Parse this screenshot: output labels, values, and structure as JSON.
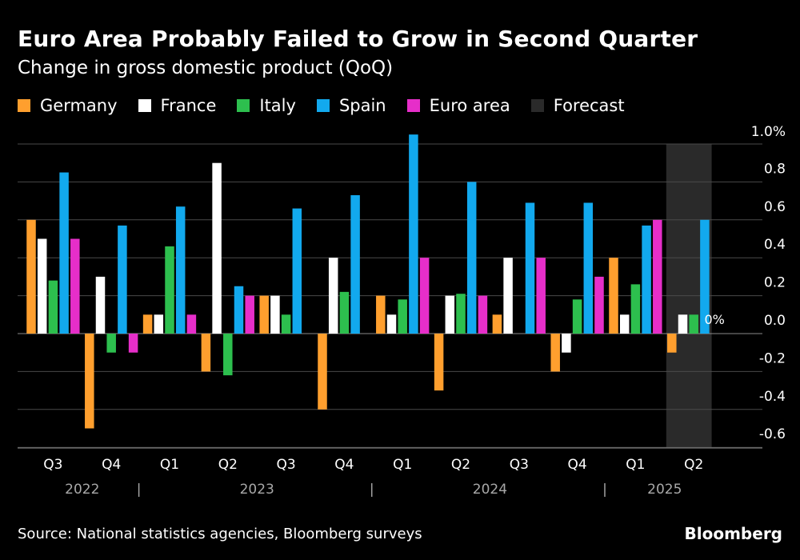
{
  "header": {
    "title": "Euro Area Probably Failed to Grow in Second Quarter",
    "subtitle": "Change in gross domestic product (QoQ)"
  },
  "legend": [
    {
      "label": "Germany",
      "color": "#ff9f2e",
      "icon": "square-swatch"
    },
    {
      "label": "France",
      "color": "#ffffff",
      "icon": "square-swatch"
    },
    {
      "label": "Italy",
      "color": "#2dbf4e",
      "icon": "square-swatch"
    },
    {
      "label": "Spain",
      "color": "#12a9ee",
      "icon": "square-swatch"
    },
    {
      "label": "Euro area",
      "color": "#e62ec9",
      "icon": "square-swatch"
    },
    {
      "label": "Forecast",
      "color": "#2a2a2a",
      "icon": "square-swatch"
    }
  ],
  "footer": {
    "source": "Source: National statistics agencies, Bloomberg surveys",
    "brand": "Bloomberg"
  },
  "chart_data": {
    "type": "bar",
    "title": "Euro Area Probably Failed to Grow in Second Quarter",
    "subtitle": "Change in gross domestic product (QoQ)",
    "categories": [
      "Q3",
      "Q4",
      "Q1",
      "Q2",
      "Q3",
      "Q4",
      "Q1",
      "Q2",
      "Q3",
      "Q4",
      "Q1",
      "Q2"
    ],
    "year_groups": [
      {
        "label": "2022",
        "start": 0,
        "end": 1
      },
      {
        "label": "2023",
        "start": 2,
        "end": 5
      },
      {
        "label": "2024",
        "start": 6,
        "end": 9
      },
      {
        "label": "2025",
        "start": 10,
        "end": 11
      }
    ],
    "year_separator": "|",
    "series": [
      {
        "name": "Germany",
        "color": "#ff9f2e",
        "values": [
          0.6,
          -0.5,
          0.1,
          -0.2,
          0.2,
          -0.4,
          0.2,
          -0.3,
          0.1,
          -0.2,
          0.4,
          -0.1
        ]
      },
      {
        "name": "France",
        "color": "#ffffff",
        "values": [
          0.5,
          0.3,
          0.1,
          0.9,
          0.2,
          0.4,
          0.1,
          0.2,
          0.4,
          -0.1,
          0.1,
          0.1
        ]
      },
      {
        "name": "Italy",
        "color": "#2dbf4e",
        "values": [
          0.28,
          -0.1,
          0.46,
          -0.22,
          0.1,
          0.22,
          0.18,
          0.21,
          0.0,
          0.18,
          0.26,
          0.1
        ]
      },
      {
        "name": "Spain",
        "color": "#12a9ee",
        "values": [
          0.85,
          0.57,
          0.67,
          0.25,
          0.66,
          0.73,
          1.05,
          0.8,
          0.69,
          0.69,
          0.57,
          0.6
        ]
      },
      {
        "name": "Euro area",
        "color": "#e62ec9",
        "values": [
          0.5,
          -0.1,
          0.1,
          0.2,
          0.0,
          0.0,
          0.4,
          0.2,
          0.4,
          0.3,
          0.6,
          0.0
        ]
      }
    ],
    "forecast": {
      "label": "Forecast",
      "category_index": 11,
      "color": "#2a2a2a"
    },
    "annotation": {
      "text": "0%",
      "category_index": 11,
      "value": 0.0
    },
    "ylim": [
      -0.6,
      1.0
    ],
    "yticks": [
      -0.6,
      -0.4,
      -0.2,
      0.0,
      0.2,
      0.4,
      0.6,
      0.8,
      1.0
    ],
    "ytick_labels": [
      "-0.6",
      "-0.4",
      "-0.2",
      "0.0",
      "0.2",
      "0.4",
      "0.6",
      "0.8",
      "1.0%"
    ],
    "grid": true,
    "legend_position": "top-left",
    "xlabel": "",
    "ylabel": ""
  }
}
